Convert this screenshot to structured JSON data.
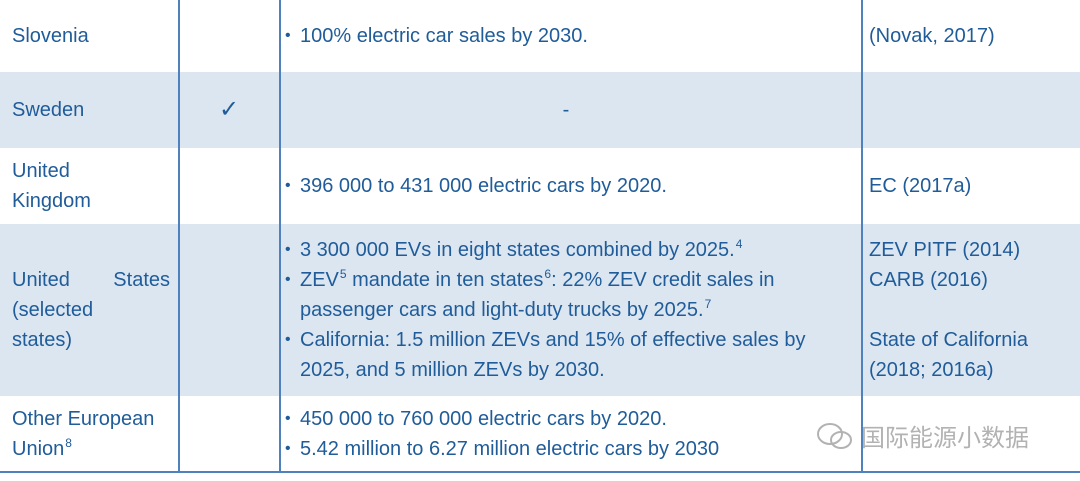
{
  "rows": [
    {
      "country": [
        [
          {
            "t": "Slovenia"
          }
        ]
      ],
      "targets": [
        [
          {
            "t": "100% electric car sales by 2030."
          }
        ]
      ],
      "refs": [
        [
          "(Novak, 2017)"
        ]
      ]
    },
    {
      "country": [
        [
          {
            "t": "Sweden"
          }
        ]
      ],
      "check": "✓",
      "dash": "-"
    },
    {
      "country": [
        [
          {
            "t": "United"
          }
        ],
        [
          {
            "t": "Kingdom"
          }
        ]
      ],
      "targets": [
        [
          {
            "t": "396 000 to 431 000 electric cars by 2020."
          }
        ]
      ],
      "refs": [
        [
          "EC (2017a)"
        ]
      ]
    },
    {
      "country": [
        [
          {
            "t": "United"
          },
          {
            "t": "States"
          }
        ],
        [
          {
            "t": "(selected"
          }
        ],
        [
          {
            "t": "states)"
          }
        ]
      ],
      "targets": [
        [
          {
            "t": "3 300 000 EVs in eight states combined by 2025."
          },
          {
            "t": "4",
            "sup": true
          }
        ],
        [
          {
            "t": "ZEV"
          },
          {
            "t": "5",
            "sup": true
          },
          {
            "t": " mandate in ten states"
          },
          {
            "t": "6",
            "sup": true
          },
          {
            "t": ": 22% ZEV credit sales in passenger cars and light-duty trucks by 2025."
          },
          {
            "t": "7",
            "sup": true
          }
        ],
        [
          {
            "t": "California: 1.5 million ZEVs and 15% of effective sales by 2025, and 5 million ZEVs by 2030."
          }
        ]
      ],
      "refs": [
        [
          "ZEV PITF (2014)",
          "CARB (2016)"
        ],
        [
          "State of California",
          "(2018; 2016a)"
        ]
      ]
    },
    {
      "country": [
        [
          {
            "t": "Other European"
          }
        ],
        [
          {
            "t": "Union"
          },
          {
            "t": "8",
            "sup": true
          }
        ]
      ],
      "targets": [
        [
          {
            "t": "450 000 to 760 000 electric cars by 2020."
          }
        ],
        [
          {
            "t": "5.42 million to 6.27 million electric cars by 2030"
          }
        ]
      ]
    }
  ],
  "watermark": "国际能源小数据"
}
